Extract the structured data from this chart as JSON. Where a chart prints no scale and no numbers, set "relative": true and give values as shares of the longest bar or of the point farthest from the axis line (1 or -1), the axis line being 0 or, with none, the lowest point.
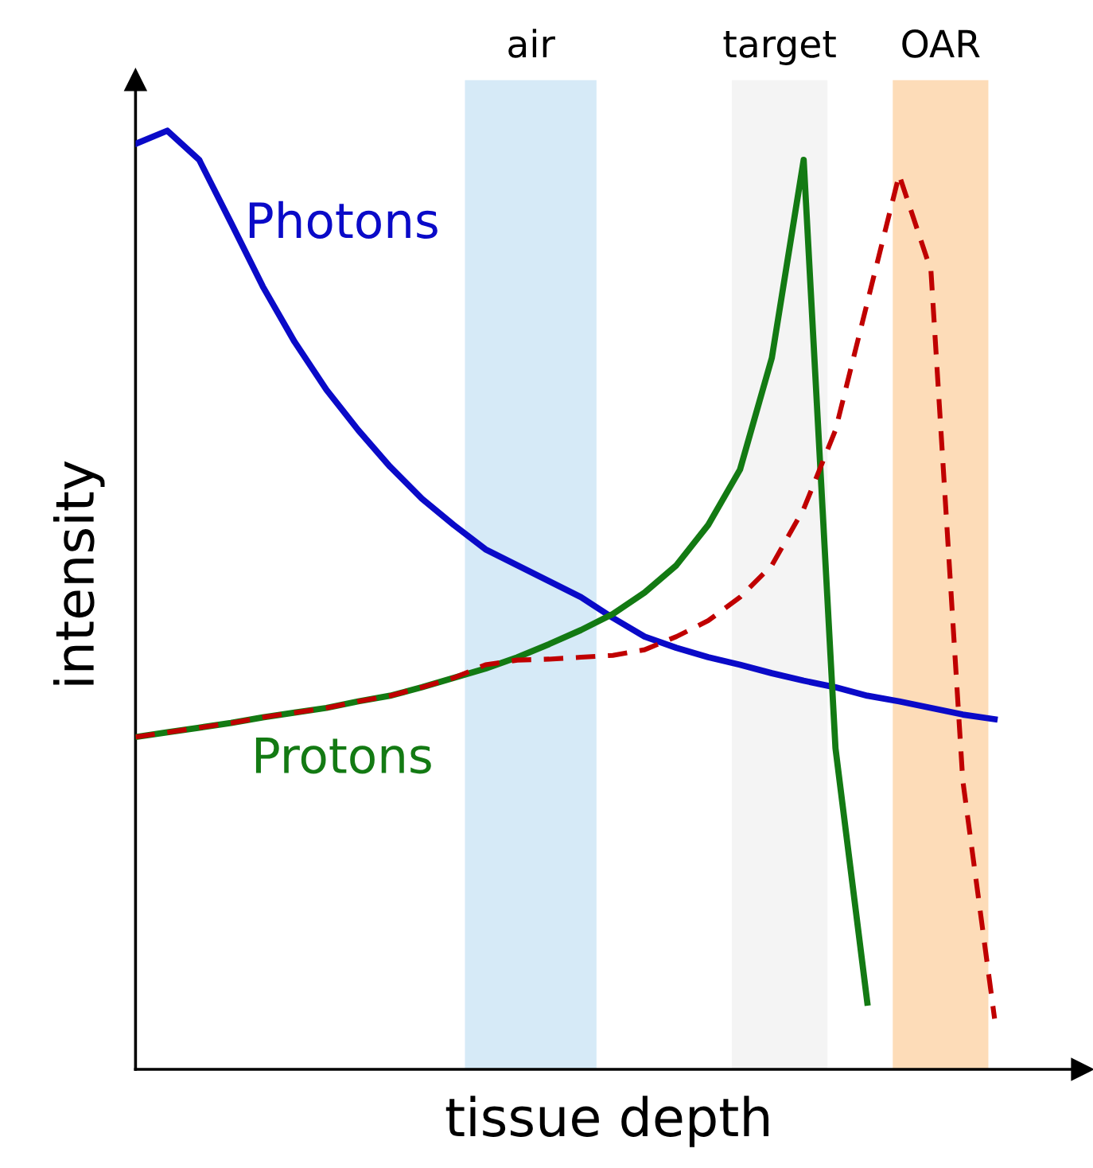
{
  "chart_data": {
    "type": "line",
    "relative": true,
    "xlabel": "tissue depth",
    "ylabel": "intensity",
    "categories": [
      null,
      null,
      null,
      null,
      null,
      null,
      null,
      null,
      null,
      null,
      null,
      null,
      null,
      null,
      null,
      null,
      null,
      null,
      null,
      null,
      null,
      null,
      null,
      null,
      null,
      null,
      null,
      null,
      null
    ],
    "series": [
      {
        "name": "Photons",
        "color": "#0a0ac8",
        "values": [
          0.986,
          1,
          0.969,
          0.902,
          0.834,
          0.775,
          0.724,
          0.681,
          0.642,
          0.608,
          0.58,
          0.554,
          0.537,
          0.52,
          0.503,
          0.481,
          0.461,
          0.449,
          0.439,
          0.431,
          0.422,
          0.414,
          0.407,
          0.398,
          0.392,
          0.385,
          0.378,
          0.373,
          null
        ]
      },
      {
        "name": "Protons",
        "color": "#137a13",
        "values": [
          0.354,
          0.359,
          0.364,
          0.369,
          0.375,
          0.38,
          0.385,
          0.392,
          0.398,
          0.407,
          0.417,
          0.427,
          0.439,
          0.453,
          0.468,
          0.485,
          0.508,
          0.537,
          0.58,
          0.639,
          0.758,
          0.969,
          0.342,
          0.071,
          null,
          null,
          null,
          null,
          null
        ]
      },
      {
        "color": "#c00000",
        "line_style": "dashed",
        "values": [
          0.354,
          0.359,
          0.364,
          0.369,
          0.375,
          0.38,
          0.385,
          0.392,
          0.398,
          0.407,
          0.417,
          0.431,
          0.436,
          0.437,
          0.439,
          0.441,
          0.447,
          0.461,
          0.478,
          0.503,
          0.537,
          0.597,
          0.681,
          0.817,
          0.953,
          0.851,
          0.308,
          0.054,
          null
        ]
      }
    ],
    "annotations": [
      "air",
      "target",
      "OAR"
    ],
    "grid": false,
    "legend": false,
    "marker": "none",
    "line_style": "solid",
    "tick_labels": false
  }
}
